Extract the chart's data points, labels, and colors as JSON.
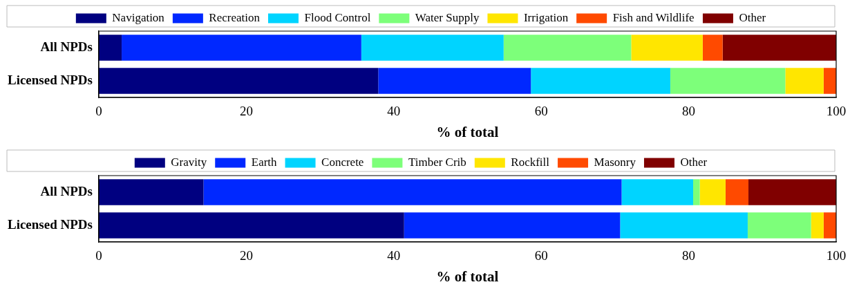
{
  "chart_data": [
    {
      "type": "bar",
      "orientation": "horizontal",
      "stacked": true,
      "xlabel": "% of total",
      "categories": [
        "All NPDs",
        "Licensed NPDs"
      ],
      "xlim": [
        0,
        100
      ],
      "xticks": [
        0,
        20,
        40,
        60,
        80,
        100
      ],
      "grid": false,
      "legend": "top",
      "series": [
        {
          "name": "Navigation",
          "color": "#000080",
          "values": [
            3.1,
            37.9
          ]
        },
        {
          "name": "Recreation",
          "color": "#0028ff",
          "values": [
            32.5,
            20.7
          ]
        },
        {
          "name": "Flood Control",
          "color": "#00d4ff",
          "values": [
            19.3,
            18.9
          ]
        },
        {
          "name": "Water Supply",
          "color": "#7dff7a",
          "values": [
            17.3,
            15.6
          ]
        },
        {
          "name": "Irrigation",
          "color": "#ffe600",
          "values": [
            9.7,
            5.2
          ]
        },
        {
          "name": "Fish and Wildlife",
          "color": "#ff4a00",
          "values": [
            2.7,
            1.7
          ]
        },
        {
          "name": "Other",
          "color": "#800000",
          "values": [
            15.4,
            0
          ]
        }
      ]
    },
    {
      "type": "bar",
      "orientation": "horizontal",
      "stacked": true,
      "xlabel": "% of total",
      "categories": [
        "All NPDs",
        "Licensed NPDs"
      ],
      "xlim": [
        0,
        100
      ],
      "xticks": [
        0,
        20,
        40,
        60,
        80,
        100
      ],
      "grid": false,
      "legend": "top",
      "series": [
        {
          "name": "Gravity",
          "color": "#000080",
          "values": [
            14.2,
            41.4
          ]
        },
        {
          "name": "Earth",
          "color": "#0028ff",
          "values": [
            56.7,
            29.3
          ]
        },
        {
          "name": "Concrete",
          "color": "#00d4ff",
          "values": [
            9.7,
            17.3
          ]
        },
        {
          "name": "Timber Crib",
          "color": "#7dff7a",
          "values": [
            0.9,
            8.6
          ]
        },
        {
          "name": "Rockfill",
          "color": "#ffe600",
          "values": [
            3.5,
            1.7
          ]
        },
        {
          "name": "Masonry",
          "color": "#ff4a00",
          "values": [
            3.1,
            1.7
          ]
        },
        {
          "name": "Other",
          "color": "#800000",
          "values": [
            11.9,
            0
          ]
        }
      ]
    }
  ]
}
